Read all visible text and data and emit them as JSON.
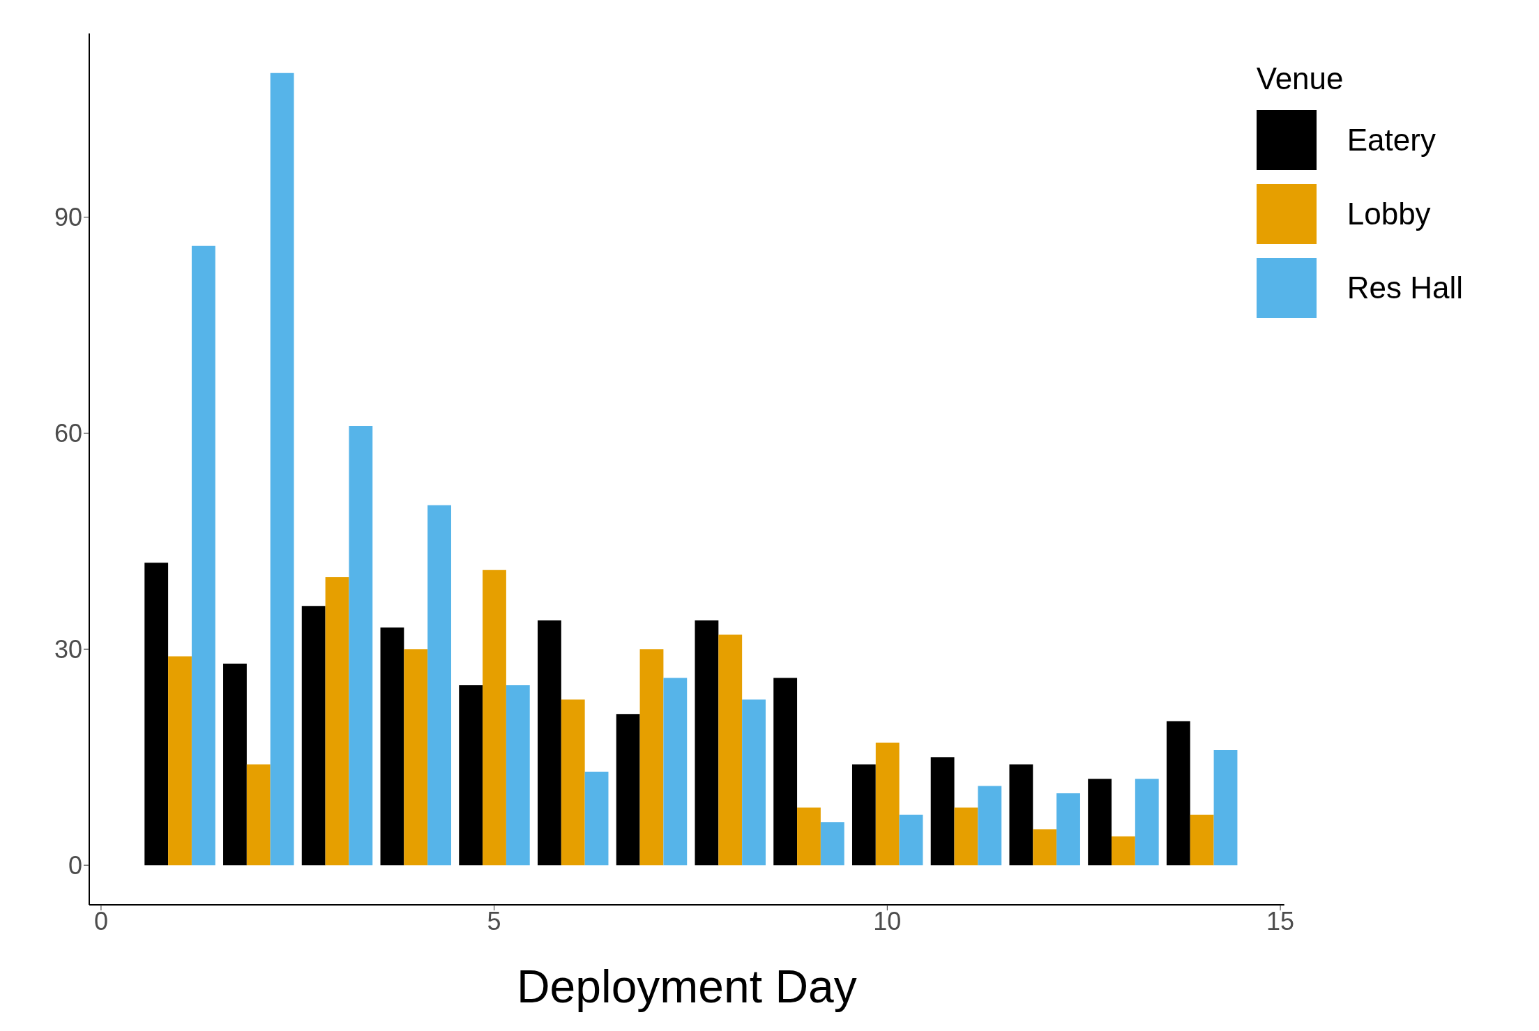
{
  "chart_data": {
    "type": "bar",
    "xlabel": "Deployment Day",
    "legend_title": "Venue",
    "legend": "top right",
    "grid": false,
    "x": [
      1,
      2,
      3,
      4,
      5,
      6,
      7,
      8,
      9,
      10,
      11,
      12,
      13,
      14
    ],
    "series": [
      {
        "name": "Eatery",
        "color": "#000000",
        "values": [
          42,
          28,
          36,
          33,
          25,
          34,
          21,
          34,
          26,
          14,
          15,
          14,
          12,
          20
        ]
      },
      {
        "name": "Lobby",
        "color": "#e69f00",
        "values": [
          29,
          14,
          40,
          30,
          41,
          23,
          30,
          32,
          8,
          17,
          8,
          5,
          4,
          7
        ]
      },
      {
        "name": "Res Hall",
        "color": "#56b4e9",
        "values": [
          86,
          110,
          61,
          50,
          25,
          13,
          26,
          23,
          6,
          7,
          11,
          10,
          12,
          16
        ]
      }
    ],
    "xlim": [
      -0.15,
      15.05
    ],
    "xticks": [
      0,
      5,
      10,
      15
    ],
    "ylim": [
      -5.5,
      115.5
    ],
    "yticks": [
      0,
      30,
      60,
      90
    ]
  }
}
